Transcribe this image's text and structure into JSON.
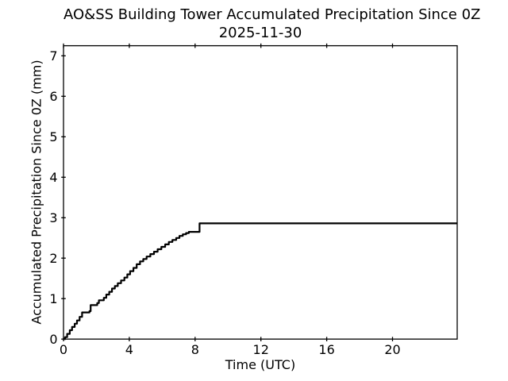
{
  "figure": {
    "title_line1": "AO&SS Building Tower Accumulated Precipitation Since 0Z",
    "title_line2": "2025-11-30",
    "xlabel": "Time (UTC)",
    "ylabel": "Accumulated Precipitation Since 0Z (mm)"
  },
  "chart_data": {
    "type": "line",
    "title": "AO&SS Building Tower Accumulated Precipitation Since 0Z 2025-11-30",
    "xlabel": "Time (UTC)",
    "ylabel": "Accumulated Precipitation Since 0Z (mm)",
    "xlim": [
      0,
      23.93
    ],
    "ylim": [
      0,
      7.25
    ],
    "xticks": [
      0,
      4,
      8,
      12,
      16,
      20
    ],
    "yticks": [
      0,
      1,
      2,
      3,
      4,
      5,
      6,
      7
    ],
    "grid": false,
    "legend": "none",
    "line_color": "#000000",
    "line_width": 2.2,
    "step": "post",
    "tick_style": "inout",
    "ticks_top": true,
    "ticks_right": false,
    "final_value_mm": 2.86,
    "series": [
      {
        "name": "accumulated_precipitation_mm",
        "points": [
          [
            0.0,
            0.0
          ],
          [
            0.1,
            0.05
          ],
          [
            0.22,
            0.13
          ],
          [
            0.38,
            0.22
          ],
          [
            0.52,
            0.3
          ],
          [
            0.68,
            0.38
          ],
          [
            0.82,
            0.46
          ],
          [
            0.98,
            0.55
          ],
          [
            1.13,
            0.66
          ],
          [
            1.58,
            0.69
          ],
          [
            1.65,
            0.84
          ],
          [
            2.05,
            0.89
          ],
          [
            2.15,
            0.96
          ],
          [
            2.45,
            1.02
          ],
          [
            2.6,
            1.1
          ],
          [
            2.78,
            1.17
          ],
          [
            2.95,
            1.25
          ],
          [
            3.12,
            1.31
          ],
          [
            3.3,
            1.38
          ],
          [
            3.5,
            1.45
          ],
          [
            3.7,
            1.52
          ],
          [
            3.88,
            1.6
          ],
          [
            4.05,
            1.68
          ],
          [
            4.25,
            1.76
          ],
          [
            4.45,
            1.85
          ],
          [
            4.65,
            1.92
          ],
          [
            4.85,
            1.98
          ],
          [
            5.05,
            2.04
          ],
          [
            5.28,
            2.1
          ],
          [
            5.5,
            2.16
          ],
          [
            5.72,
            2.22
          ],
          [
            5.95,
            2.28
          ],
          [
            6.18,
            2.34
          ],
          [
            6.4,
            2.4
          ],
          [
            6.62,
            2.45
          ],
          [
            6.85,
            2.5
          ],
          [
            7.05,
            2.55
          ],
          [
            7.25,
            2.59
          ],
          [
            7.45,
            2.62
          ],
          [
            7.62,
            2.65
          ],
          [
            8.22,
            2.65
          ],
          [
            8.27,
            2.86
          ],
          [
            23.93,
            2.86
          ]
        ]
      }
    ]
  }
}
